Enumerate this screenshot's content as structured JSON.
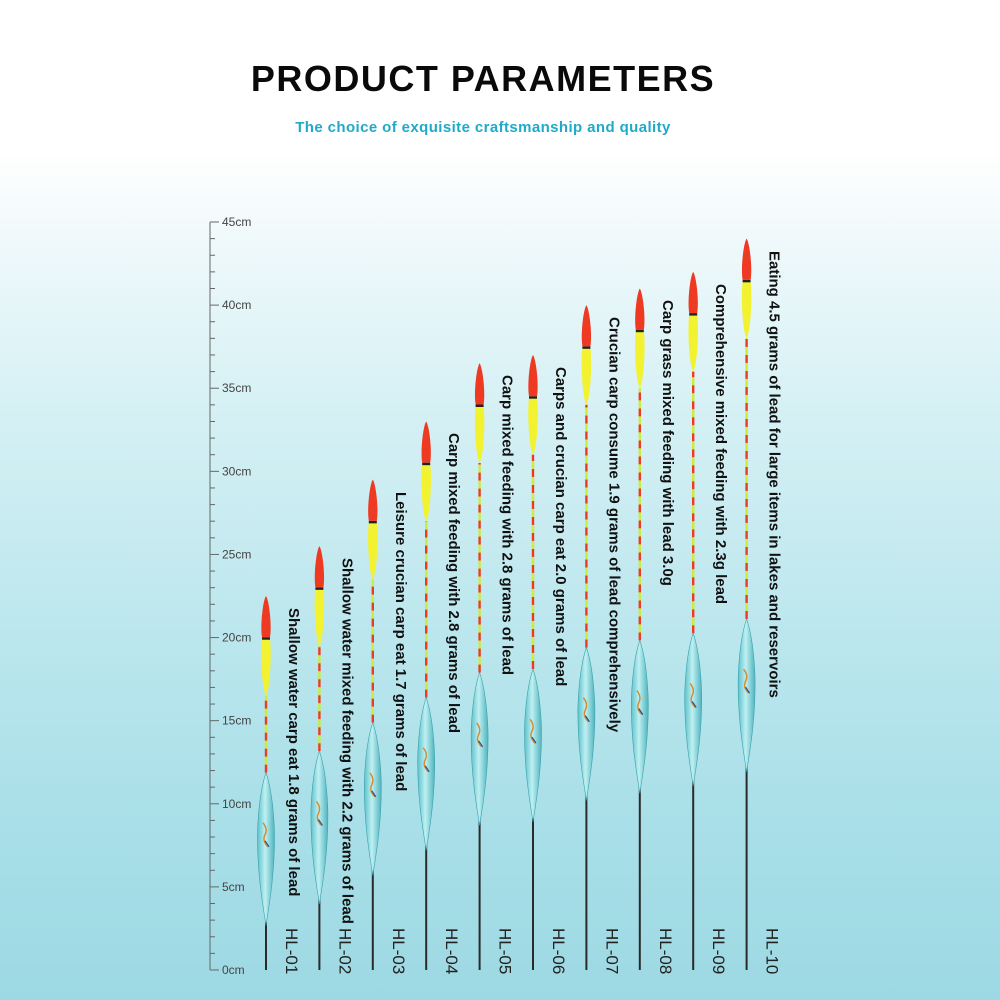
{
  "header": {
    "title": "PRODUCT PARAMETERS",
    "subtitle": "The choice of exquisite craftsmanship and quality"
  },
  "ruler": {
    "unit": "cm",
    "min": 0,
    "max": 45,
    "labels": [
      "0cm",
      "5cm",
      "10cm",
      "15cm",
      "20cm",
      "25cm",
      "30cm",
      "35cm",
      "40cm",
      "45cm"
    ]
  },
  "colors": {
    "tip_red": "#ee3a22",
    "tip_yellow": "#f2f230",
    "body_teal": "#7ed0d6",
    "stem": "#2a2a2a",
    "subtitle": "#20aac8"
  },
  "floats": [
    {
      "model": "HL-01",
      "description": "Shallow water carp eat 1.8 grams of lead",
      "length_cm": 22.5
    },
    {
      "model": "HL-02",
      "description": "Shallow water mixed feeding with 2.2 grams of lead",
      "length_cm": 25.5
    },
    {
      "model": "HL-03",
      "description": "Leisure crucian carp eat 1.7 grams of lead",
      "length_cm": 29.5
    },
    {
      "model": "HL-04",
      "description": "Carp mixed feeding with 2.8 grams of lead",
      "length_cm": 33
    },
    {
      "model": "HL-05",
      "description": "Carp mixed feeding with 2.8 grams of lead",
      "length_cm": 36.5
    },
    {
      "model": "HL-06",
      "description": "Carps and crucian carp eat 2.0 grams of lead",
      "length_cm": 37
    },
    {
      "model": "HL-07",
      "description": "Crucian carp consume 1.9 grams of lead comprehensively",
      "length_cm": 40
    },
    {
      "model": "HL-08",
      "description": "Carp grass mixed feeding with lead 3.0g",
      "length_cm": 41
    },
    {
      "model": "HL-09",
      "description": "Comprehensive mixed feeding with 2.3g lead",
      "length_cm": 42
    },
    {
      "model": "HL-10",
      "description": "Eating 4.5 grams of lead for large items in lakes and reservoirs",
      "length_cm": 44
    }
  ]
}
